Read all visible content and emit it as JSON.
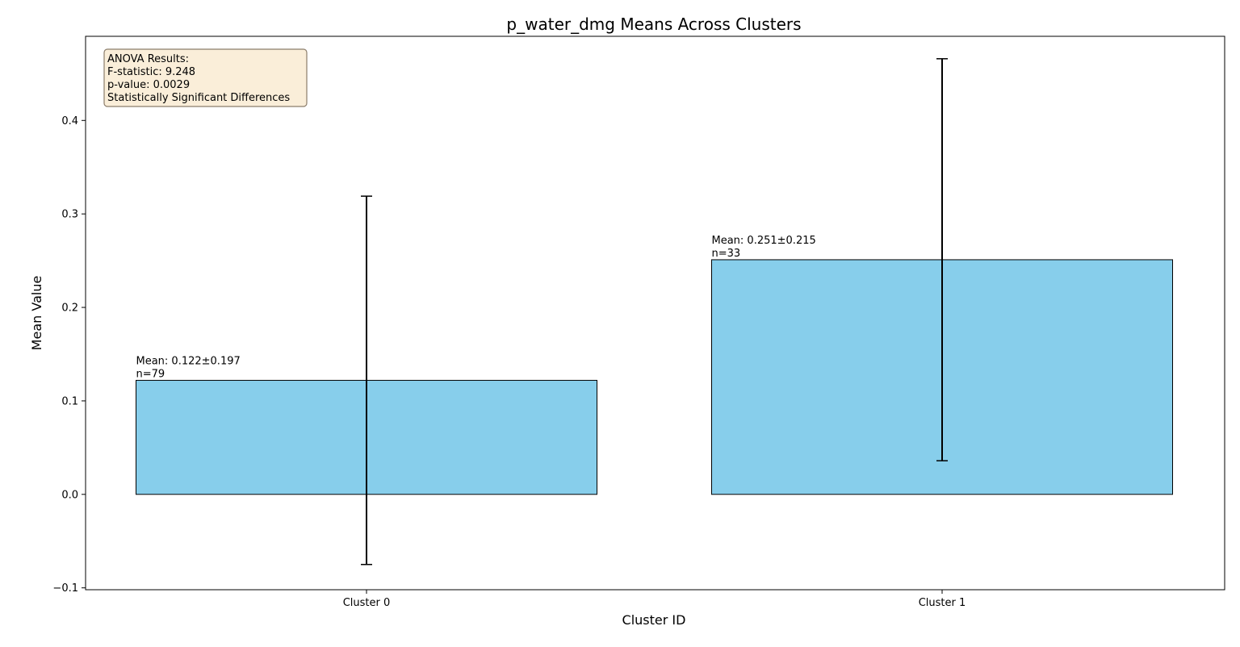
{
  "chart_data": {
    "type": "bar",
    "title": "p_water_dmg Means Across Clusters",
    "xlabel": "Cluster ID",
    "ylabel": "Mean Value",
    "ylim": [
      -0.102,
      0.49
    ],
    "yticks": [
      -0.1,
      0.0,
      0.1,
      0.2,
      0.3,
      0.4
    ],
    "ytick_labels": [
      "−0.1",
      "0.0",
      "0.1",
      "0.2",
      "0.3",
      "0.4"
    ],
    "categories": [
      "Cluster 0",
      "Cluster 1"
    ],
    "values": [
      0.122,
      0.251
    ],
    "errors": [
      0.197,
      0.215
    ],
    "n": [
      79,
      33
    ],
    "bar_labels": [
      [
        "Mean: 0.122±0.197",
        "n=79"
      ],
      [
        "Mean: 0.251±0.215",
        "n=33"
      ]
    ],
    "bar_color": "#87ceeb",
    "bar_edge_color": "#000000",
    "grid": false,
    "annotation": {
      "lines": [
        "ANOVA Results:",
        "F-statistic: 9.248",
        "p-value: 0.0029",
        "Statistically Significant Differences"
      ],
      "placement": "top-left",
      "background": "#f5deb3",
      "border": "#8b7d6b"
    }
  }
}
